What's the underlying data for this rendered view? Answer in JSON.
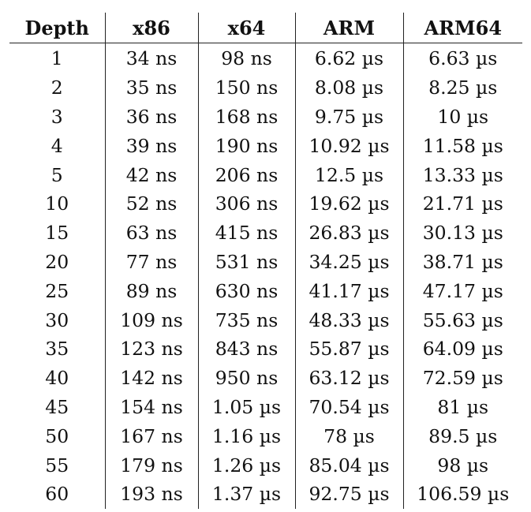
{
  "table": {
    "headers": [
      "Depth",
      "x86",
      "x64",
      "ARM",
      "ARM64"
    ],
    "rows": [
      [
        "1",
        "34 ns",
        "98 ns",
        "6.62 µs",
        "6.63 µs"
      ],
      [
        "2",
        "35 ns",
        "150 ns",
        "8.08 µs",
        "8.25 µs"
      ],
      [
        "3",
        "36 ns",
        "168 ns",
        "9.75 µs",
        "10 µs"
      ],
      [
        "4",
        "39 ns",
        "190 ns",
        "10.92 µs",
        "11.58 µs"
      ],
      [
        "5",
        "42 ns",
        "206 ns",
        "12.5 µs",
        "13.33 µs"
      ],
      [
        "10",
        "52 ns",
        "306 ns",
        "19.62 µs",
        "21.71 µs"
      ],
      [
        "15",
        "63 ns",
        "415 ns",
        "26.83 µs",
        "30.13 µs"
      ],
      [
        "20",
        "77 ns",
        "531 ns",
        "34.25 µs",
        "38.71 µs"
      ],
      [
        "25",
        "89 ns",
        "630 ns",
        "41.17 µs",
        "47.17 µs"
      ],
      [
        "30",
        "109 ns",
        "735 ns",
        "48.33 µs",
        "55.63 µs"
      ],
      [
        "35",
        "123 ns",
        "843 ns",
        "55.87 µs",
        "64.09 µs"
      ],
      [
        "40",
        "142 ns",
        "950 ns",
        "63.12 µs",
        "72.59 µs"
      ],
      [
        "45",
        "154 ns",
        "1.05 µs",
        "70.54 µs",
        "81 µs"
      ],
      [
        "50",
        "167 ns",
        "1.16 µs",
        "78 µs",
        "89.5 µs"
      ],
      [
        "55",
        "179 ns",
        "1.26 µs",
        "85.04 µs",
        "98 µs"
      ],
      [
        "60",
        "193 ns",
        "1.37 µs",
        "92.75 µs",
        "106.59 µs"
      ]
    ]
  }
}
